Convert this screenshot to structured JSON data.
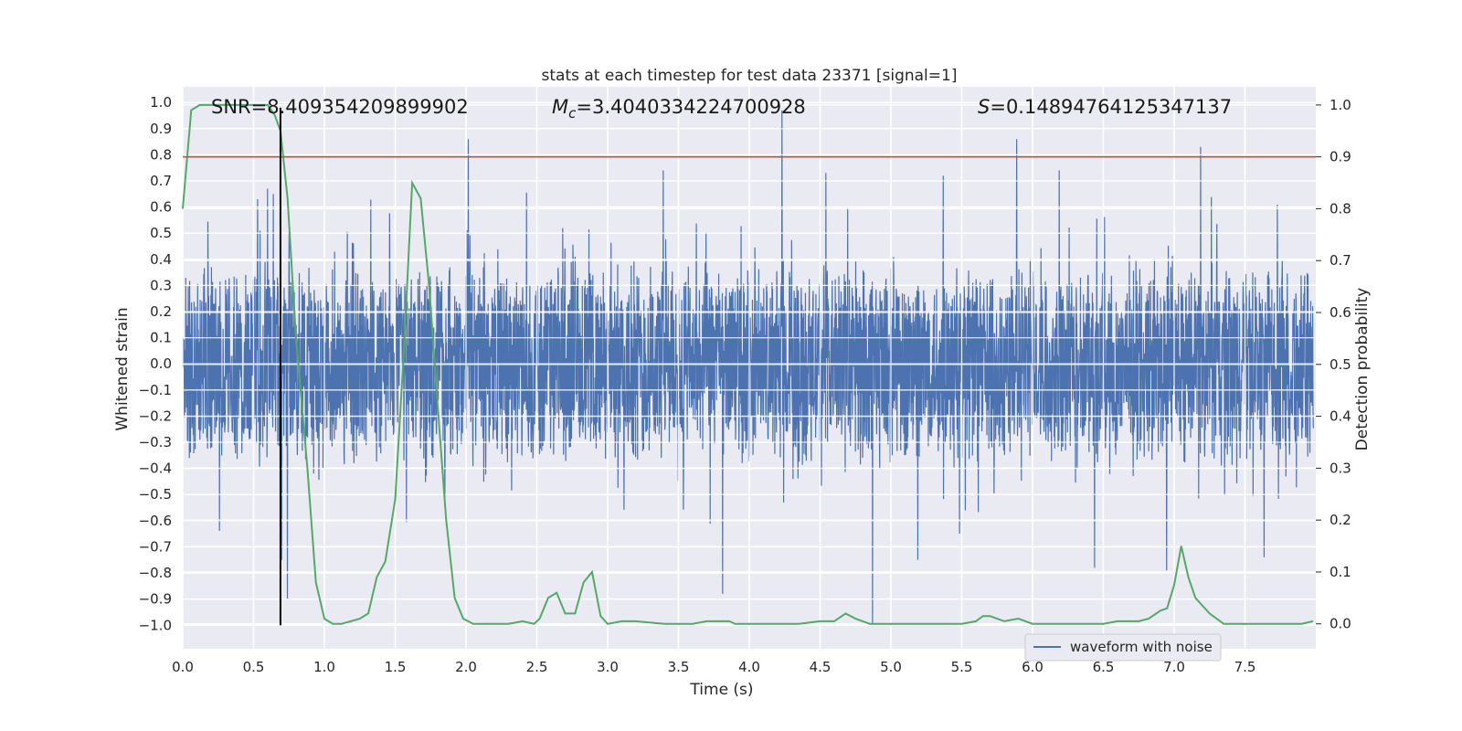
{
  "chart_data": {
    "type": "line",
    "title": "stats at each timestep for test data 23371 [signal=1]",
    "xlabel": "Time (s)",
    "ylabel_left": "Whitened strain",
    "ylabel_right": "Detection probability",
    "xlim": [
      0.0,
      8.0
    ],
    "ylim_left": [
      -1.09,
      1.06
    ],
    "ylim_right": [
      -0.048,
      1.035
    ],
    "x_ticks": [
      "0.0",
      "0.5",
      "1.0",
      "1.5",
      "2.0",
      "2.5",
      "3.0",
      "3.5",
      "4.0",
      "4.5",
      "5.0",
      "5.5",
      "6.0",
      "6.5",
      "7.0",
      "7.5"
    ],
    "y_left_ticks": [
      "1.0",
      "0.9",
      "0.8",
      "0.7",
      "0.6",
      "0.5",
      "0.4",
      "0.3",
      "0.2",
      "0.1",
      "0.0",
      "−0.1",
      "−0.2",
      "−0.3",
      "−0.4",
      "−0.5",
      "−0.6",
      "−0.7",
      "−0.8",
      "−0.9",
      "−1.0"
    ],
    "y_right_ticks": [
      "1.0",
      "0.9",
      "0.8",
      "0.7",
      "0.6",
      "0.5",
      "0.4",
      "0.3",
      "0.2",
      "0.1",
      "0.0"
    ],
    "grid": true,
    "legend_position": "lower-right",
    "annotations": {
      "snr": "SNR=8.409354209899902",
      "mc_prefix": "M",
      "mc_sub": "c",
      "mc_value": "=3.4040334224700928",
      "s_prefix": "S",
      "s_value": "=0.14894764125347137"
    },
    "threshold_line": {
      "value": 0.9,
      "axis": "right",
      "color": "#c44e52"
    },
    "vertical_marker": {
      "x": 0.69,
      "color": "#000000"
    },
    "series": [
      {
        "name": "waveform with noise",
        "axis": "left",
        "color": "#4c72b0",
        "style": "dense noisy strain, roughly ±0.35 with spikes",
        "notable_peaks": [
          {
            "x": 0.53,
            "y": 0.63
          },
          {
            "x": 0.6,
            "y": 0.67
          },
          {
            "x": 0.64,
            "y": 0.65
          },
          {
            "x": 2.02,
            "y": 0.86
          },
          {
            "x": 3.4,
            "y": 0.74
          },
          {
            "x": 4.24,
            "y": 0.97
          },
          {
            "x": 4.55,
            "y": 0.73
          },
          {
            "x": 5.38,
            "y": 0.72
          },
          {
            "x": 5.9,
            "y": 0.86
          },
          {
            "x": 7.2,
            "y": 0.83
          },
          {
            "x": 6.2,
            "y": 0.74
          }
        ],
        "notable_troughs": [
          {
            "x": 0.7,
            "y": -0.75
          },
          {
            "x": 0.74,
            "y": -0.9
          },
          {
            "x": 3.82,
            "y": -0.88
          },
          {
            "x": 4.88,
            "y": -1.0
          },
          {
            "x": 5.2,
            "y": -0.75
          },
          {
            "x": 6.45,
            "y": -0.78
          },
          {
            "x": 6.96,
            "y": -0.79
          },
          {
            "x": 7.65,
            "y": -0.74
          }
        ]
      },
      {
        "name": "",
        "axis": "right",
        "color": "#55a868",
        "x": [
          0.0,
          0.06,
          0.12,
          0.2,
          0.3,
          0.4,
          0.5,
          0.6,
          0.65,
          0.69,
          0.74,
          0.8,
          0.88,
          0.94,
          1.0,
          1.06,
          1.12,
          1.25,
          1.31,
          1.37,
          1.43,
          1.5,
          1.56,
          1.62,
          1.68,
          1.74,
          1.8,
          1.86,
          1.92,
          1.98,
          2.05,
          2.2,
          2.3,
          2.4,
          2.48,
          2.52,
          2.58,
          2.64,
          2.7,
          2.77,
          2.83,
          2.89,
          2.95,
          3.0,
          3.1,
          3.2,
          3.4,
          3.6,
          3.7,
          3.78,
          3.86,
          3.9,
          4.0,
          4.2,
          4.35,
          4.5,
          4.6,
          4.68,
          4.75,
          4.85,
          4.9,
          5.0,
          5.2,
          5.4,
          5.5,
          5.6,
          5.65,
          5.7,
          5.75,
          5.8,
          5.9,
          6.0,
          6.1,
          6.3,
          6.5,
          6.6,
          6.7,
          6.75,
          6.82,
          6.9,
          6.95,
          7.0,
          7.05,
          7.1,
          7.15,
          7.2,
          7.25,
          7.3,
          7.35,
          7.4,
          7.5,
          7.6,
          7.7,
          7.8,
          7.9,
          7.98
        ],
        "y": [
          0.8,
          0.99,
          1.0,
          1.0,
          1.0,
          1.0,
          1.0,
          1.0,
          0.98,
          0.95,
          0.82,
          0.55,
          0.3,
          0.08,
          0.01,
          0.0,
          0.0,
          0.01,
          0.02,
          0.09,
          0.12,
          0.24,
          0.52,
          0.85,
          0.82,
          0.65,
          0.42,
          0.2,
          0.05,
          0.01,
          0.0,
          0.0,
          0.0,
          0.005,
          0.0,
          0.01,
          0.05,
          0.06,
          0.02,
          0.02,
          0.08,
          0.1,
          0.015,
          0.0,
          0.005,
          0.005,
          0.0,
          0.0,
          0.005,
          0.005,
          0.005,
          0.0,
          0.0,
          0.0,
          0.0,
          0.005,
          0.005,
          0.02,
          0.01,
          0.0,
          0.0,
          0.0,
          0.0,
          0.0,
          0.0,
          0.005,
          0.015,
          0.015,
          0.01,
          0.005,
          0.01,
          0.0,
          0.0,
          0.0,
          0.0,
          0.005,
          0.005,
          0.005,
          0.01,
          0.025,
          0.03,
          0.075,
          0.15,
          0.09,
          0.05,
          0.035,
          0.02,
          0.01,
          0.0,
          0.0,
          0.0,
          0.0,
          0.0,
          0.0,
          0.0,
          0.005
        ]
      }
    ]
  }
}
